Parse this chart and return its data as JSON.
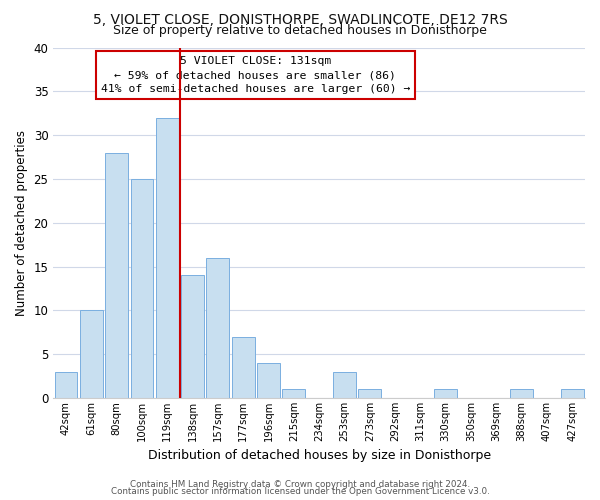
{
  "title": "5, VIOLET CLOSE, DONISTHORPE, SWADLINCOTE, DE12 7RS",
  "subtitle": "Size of property relative to detached houses in Donisthorpe",
  "xlabel": "Distribution of detached houses by size in Donisthorpe",
  "ylabel": "Number of detached properties",
  "bin_labels": [
    "42sqm",
    "61sqm",
    "80sqm",
    "100sqm",
    "119sqm",
    "138sqm",
    "157sqm",
    "177sqm",
    "196sqm",
    "215sqm",
    "234sqm",
    "253sqm",
    "273sqm",
    "292sqm",
    "311sqm",
    "330sqm",
    "350sqm",
    "369sqm",
    "388sqm",
    "407sqm",
    "427sqm"
  ],
  "bar_heights": [
    3,
    10,
    28,
    25,
    32,
    14,
    16,
    7,
    4,
    1,
    0,
    3,
    1,
    0,
    0,
    1,
    0,
    0,
    1,
    0,
    1
  ],
  "bar_color": "#c8dff0",
  "bar_edge_color": "#7aafe0",
  "vline_x_idx": 4.5,
  "vline_color": "#cc0000",
  "ylim": [
    0,
    40
  ],
  "yticks": [
    0,
    5,
    10,
    15,
    20,
    25,
    30,
    35,
    40
  ],
  "annotation_title": "5 VIOLET CLOSE: 131sqm",
  "annotation_line1": "← 59% of detached houses are smaller (86)",
  "annotation_line2": "41% of semi-detached houses are larger (60) →",
  "annotation_box_facecolor": "#ffffff",
  "annotation_box_edgecolor": "#cc0000",
  "footer1": "Contains HM Land Registry data © Crown copyright and database right 2024.",
  "footer2": "Contains public sector information licensed under the Open Government Licence v3.0.",
  "fig_facecolor": "#ffffff",
  "ax_facecolor": "#ffffff",
  "grid_color": "#d0d8e8",
  "title_fontsize": 10,
  "subtitle_fontsize": 9,
  "title_fontweight": "normal"
}
